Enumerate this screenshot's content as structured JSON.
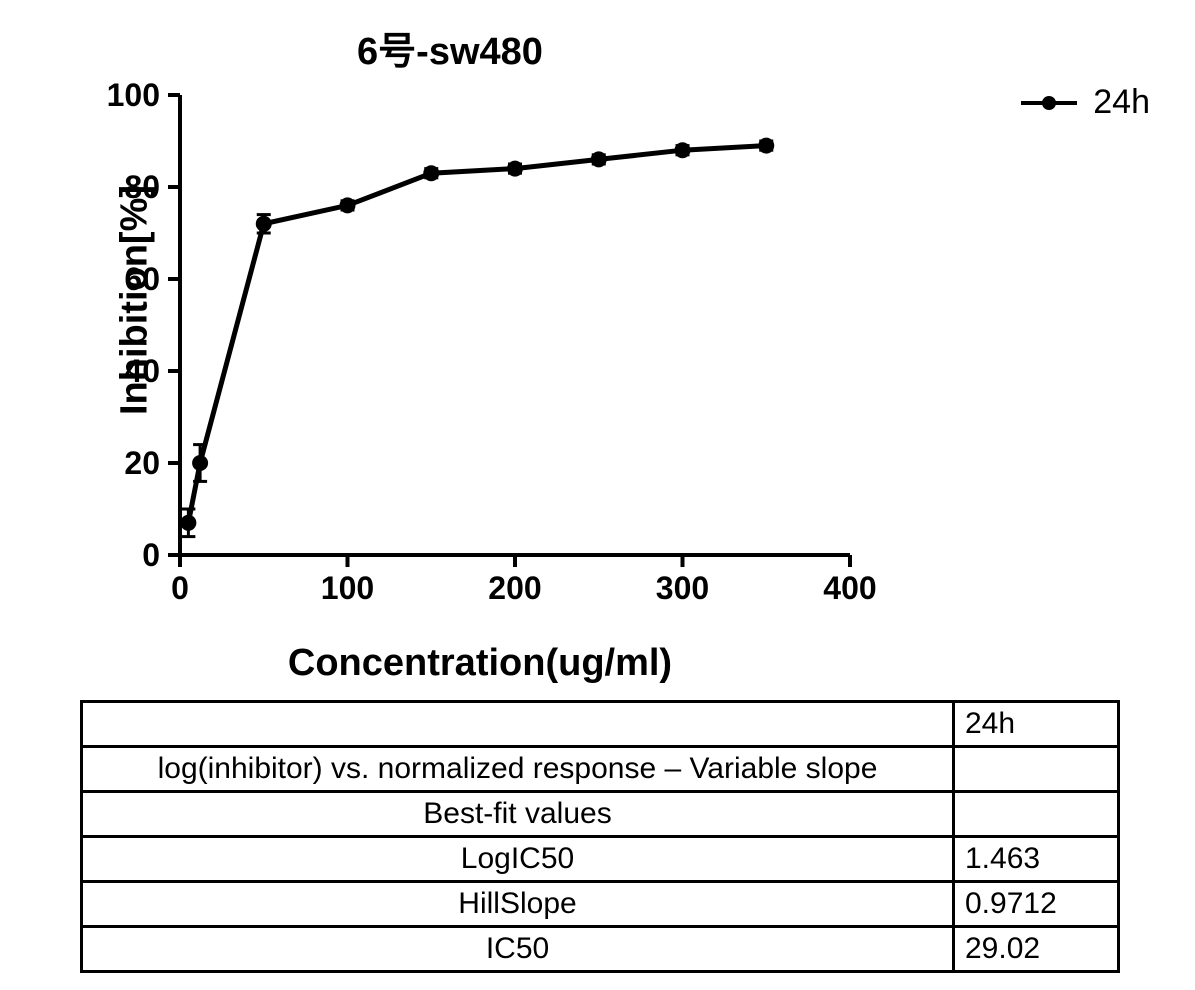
{
  "chart": {
    "title": "6号-sw480",
    "title_fontsize": 38,
    "type": "line-scatter-errorbar",
    "x_label": "Concentration(ug/ml)",
    "y_label": "Inhibition[%]",
    "label_fontsize": 38,
    "axis_color": "#000000",
    "axis_width": 4,
    "tick_length": 12,
    "background_color": "#ffffff",
    "series": [
      {
        "name": "24h",
        "color": "#000000",
        "line_width": 5,
        "marker": "circle",
        "marker_size": 8,
        "x": [
          5,
          12,
          50,
          100,
          150,
          200,
          250,
          300,
          350
        ],
        "y": [
          7,
          20,
          72,
          76,
          83,
          84,
          86,
          88,
          89
        ],
        "err": [
          3,
          4,
          2,
          1,
          1,
          1,
          1,
          1,
          1
        ]
      }
    ],
    "legend": {
      "label": "24h",
      "fontsize": 34,
      "position": "right-top"
    },
    "x_axis": {
      "min": 0,
      "max": 400,
      "tick_step": 100,
      "ticks": [
        0,
        100,
        200,
        300,
        400
      ],
      "tick_fontsize": 32
    },
    "y_axis": {
      "min": 0,
      "max": 100,
      "tick_step": 20,
      "ticks": [
        0,
        20,
        40,
        60,
        80,
        100
      ],
      "tick_fontsize": 32
    }
  },
  "table": {
    "columns": [
      "",
      "24h"
    ],
    "col_widths_pct": [
      86,
      14
    ],
    "header_24h": "24h",
    "rows": [
      {
        "label": "",
        "value": "24h"
      },
      {
        "label": "log(inhibitor) vs. normalized response – Variable slope",
        "value": ""
      },
      {
        "label": "Best-fit values",
        "value": ""
      },
      {
        "label": "LogIC50",
        "value": "1.463"
      },
      {
        "label": "HillSlope",
        "value": "0.9712"
      },
      {
        "label": "IC50",
        "value": "29.02"
      }
    ],
    "border_color": "#000000",
    "border_width": 3,
    "fontsize": 30
  }
}
